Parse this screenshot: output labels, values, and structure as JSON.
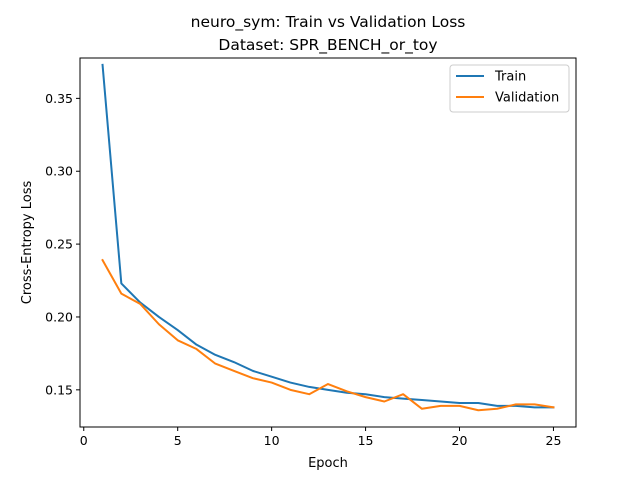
{
  "chart_data": {
    "type": "line",
    "title": "neuro_sym: Train vs Validation Loss",
    "subtitle": "Dataset: SPR_BENCH_or_toy",
    "xlabel": "Epoch",
    "ylabel": "Cross-Entropy Loss",
    "xlim": [
      -0.2,
      26.2
    ],
    "ylim": [
      0.1245,
      0.3777
    ],
    "xticks": [
      0,
      5,
      10,
      15,
      20,
      25
    ],
    "yticks": [
      0.15,
      0.2,
      0.25,
      0.3,
      0.35
    ],
    "ytick_labels": [
      "0.15",
      "0.20",
      "0.25",
      "0.30",
      "0.35"
    ],
    "grid": false,
    "legend_position": "upper right",
    "x": [
      1,
      2,
      3,
      4,
      5,
      6,
      7,
      8,
      9,
      10,
      11,
      12,
      13,
      14,
      15,
      16,
      17,
      18,
      19,
      20,
      21,
      22,
      23,
      24,
      25
    ],
    "series": [
      {
        "name": "Train",
        "color": "#1f77b4",
        "values": [
          0.373,
          0.223,
          0.21,
          0.2,
          0.191,
          0.181,
          0.174,
          0.169,
          0.163,
          0.159,
          0.155,
          0.152,
          0.15,
          0.148,
          0.147,
          0.145,
          0.144,
          0.143,
          0.142,
          0.141,
          0.141,
          0.139,
          0.139,
          0.138,
          0.138
        ]
      },
      {
        "name": "Validation",
        "color": "#ff7f0e",
        "values": [
          0.239,
          0.216,
          0.209,
          0.195,
          0.184,
          0.178,
          0.168,
          0.163,
          0.158,
          0.155,
          0.15,
          0.147,
          0.154,
          0.149,
          0.145,
          0.142,
          0.147,
          0.137,
          0.139,
          0.139,
          0.136,
          0.137,
          0.14,
          0.14,
          0.138
        ]
      }
    ]
  }
}
